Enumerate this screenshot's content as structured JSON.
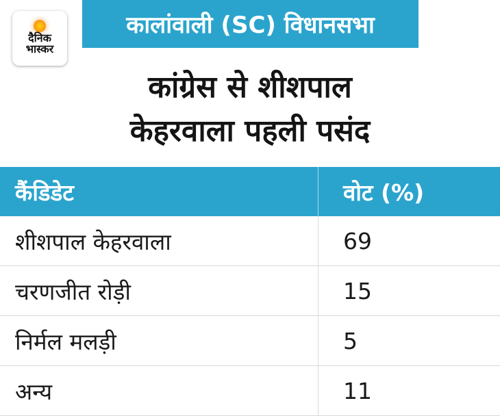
{
  "logo": {
    "line1": "दैनिक",
    "line2": "भास्कर"
  },
  "tag": "कालांवाली (SC) विधानसभा",
  "headline": {
    "line1": "कांग्रेस से शीशपाल",
    "line2": "केहरवाला पहली पसंद"
  },
  "table": {
    "headers": [
      "कैंडिडेट",
      "वोट (%)"
    ],
    "rows": [
      {
        "candidate": "शीशपाल केहरवाला",
        "votes": "69"
      },
      {
        "candidate": "चरणजीत रोड़ी",
        "votes": "15"
      },
      {
        "candidate": "निर्मल मलड़ी",
        "votes": "5"
      },
      {
        "candidate": "अन्य",
        "votes": "11"
      }
    ]
  },
  "colors": {
    "accent": "#2aa4cd",
    "logo_sun": "#f7941d"
  }
}
